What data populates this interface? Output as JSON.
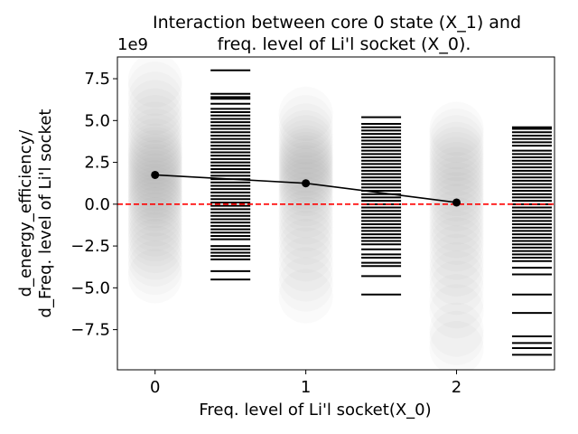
{
  "chart_data": {
    "type": "scatter",
    "title_lines": [
      "Interaction between core 0 state (X_1)  and",
      "freq. level of Li'l socket (X_0)."
    ],
    "xlabel": "Freq. level of Li'l socket(X_0)",
    "ylabel_lines": [
      "d_energy_efficiency/",
      "d_Freq. level of Li'l socket"
    ],
    "y_offset_label": "1e9",
    "xlim": [
      -0.25,
      2.65
    ],
    "ylim": [
      -9.9,
      8.8
    ],
    "x_ticks": [
      0,
      1,
      2
    ],
    "x_tick_labels": [
      "0",
      "1",
      "2"
    ],
    "y_ticks": [
      -7.5,
      -5.0,
      -2.5,
      0.0,
      2.5,
      5.0,
      7.5
    ],
    "y_tick_labels": [
      "−7.5",
      "−5.0",
      "−2.5",
      "0.0",
      "2.5",
      "5.0",
      "7.5"
    ],
    "mean_line": {
      "x": [
        0,
        1,
        2
      ],
      "y": [
        1.75,
        1.25,
        0.1
      ],
      "color": "#000000"
    },
    "zero_line": {
      "y": 0,
      "color": "#ff0000",
      "style": "dashed"
    },
    "scatter_clouds": [
      {
        "x": 0,
        "y": [
          -4.3,
          -3.8,
          -3.3,
          -2.9,
          -2.5,
          -2.1,
          -1.8,
          -1.5,
          -1.2,
          -0.9,
          -0.6,
          -0.3,
          0.0,
          0.2,
          0.4,
          0.6,
          0.8,
          1.0,
          1.2,
          1.4,
          1.6,
          1.8,
          2.0,
          2.2,
          2.4,
          2.6,
          2.8,
          3.0,
          3.2,
          3.5,
          3.8,
          4.1,
          4.5,
          4.9,
          5.3,
          5.8,
          6.3,
          6.9,
          7.4
        ]
      },
      {
        "x": 1,
        "y": [
          -5.5,
          -4.8,
          -4.2,
          -3.6,
          -3.0,
          -2.5,
          -2.0,
          -1.6,
          -1.2,
          -0.8,
          -0.4,
          0.0,
          0.3,
          0.6,
          0.9,
          1.1,
          1.3,
          1.5,
          1.7,
          1.9,
          2.1,
          2.3,
          2.5,
          2.7,
          2.9,
          3.1,
          3.4,
          3.7,
          4.0,
          4.4,
          4.9,
          5.4
        ]
      },
      {
        "x": 2,
        "y": [
          -8.6,
          -8.0,
          -7.5,
          -6.4,
          -5.8,
          -5.0,
          -4.4,
          -3.9,
          -3.4,
          -2.9,
          -2.4,
          -2.0,
          -1.6,
          -1.2,
          -0.8,
          -0.4,
          0.0,
          0.3,
          0.6,
          0.9,
          1.2,
          1.5,
          1.8,
          2.1,
          2.4,
          2.7,
          3.0,
          3.3,
          3.7,
          4.1,
          4.5
        ]
      }
    ],
    "rug_groups": [
      {
        "x": 0.5,
        "y": [
          8.0,
          6.6,
          6.4,
          6.3,
          6.0,
          5.7,
          5.5,
          5.3,
          5.1,
          4.9,
          4.7,
          4.5,
          4.3,
          4.1,
          3.9,
          3.7,
          3.5,
          3.3,
          3.1,
          2.9,
          2.7,
          2.5,
          2.3,
          2.1,
          1.9,
          1.7,
          1.5,
          1.3,
          1.1,
          0.9,
          0.7,
          0.5,
          0.3,
          0.1,
          -0.1,
          -0.3,
          -0.5,
          -0.7,
          -0.9,
          -1.1,
          -1.3,
          -1.5,
          -1.7,
          -1.9,
          -2.1,
          -2.5,
          -2.7,
          -2.9,
          -3.1,
          -3.3,
          -4.0,
          -4.5
        ]
      },
      {
        "x": 1.5,
        "y": [
          5.2,
          4.8,
          4.6,
          4.4,
          4.2,
          4.0,
          3.8,
          3.6,
          3.4,
          3.2,
          3.0,
          2.8,
          2.6,
          2.4,
          2.2,
          2.0,
          1.8,
          1.6,
          1.4,
          1.2,
          1.0,
          0.8,
          0.6,
          0.4,
          0.2,
          0.0,
          -0.2,
          -0.4,
          -0.6,
          -0.8,
          -1.0,
          -1.2,
          -1.4,
          -1.6,
          -1.8,
          -2.0,
          -2.2,
          -2.4,
          -2.7,
          -3.0,
          -3.2,
          -3.5,
          -3.7,
          -4.3,
          -5.4
        ]
      },
      {
        "x": 2.5,
        "y": [
          4.6,
          4.5,
          4.3,
          4.1,
          3.9,
          3.7,
          3.5,
          3.2,
          3.0,
          2.8,
          2.6,
          2.4,
          2.2,
          2.0,
          1.8,
          1.6,
          1.4,
          1.2,
          1.0,
          0.8,
          0.6,
          0.4,
          0.2,
          0.0,
          -0.2,
          -0.4,
          -0.6,
          -0.8,
          -1.0,
          -1.2,
          -1.4,
          -1.6,
          -1.8,
          -2.0,
          -2.2,
          -2.4,
          -2.6,
          -2.8,
          -3.0,
          -3.2,
          -3.4,
          -3.8,
          -4.2,
          -5.4,
          -6.5,
          -7.9,
          -8.3,
          -8.6,
          -9.0
        ]
      }
    ]
  }
}
